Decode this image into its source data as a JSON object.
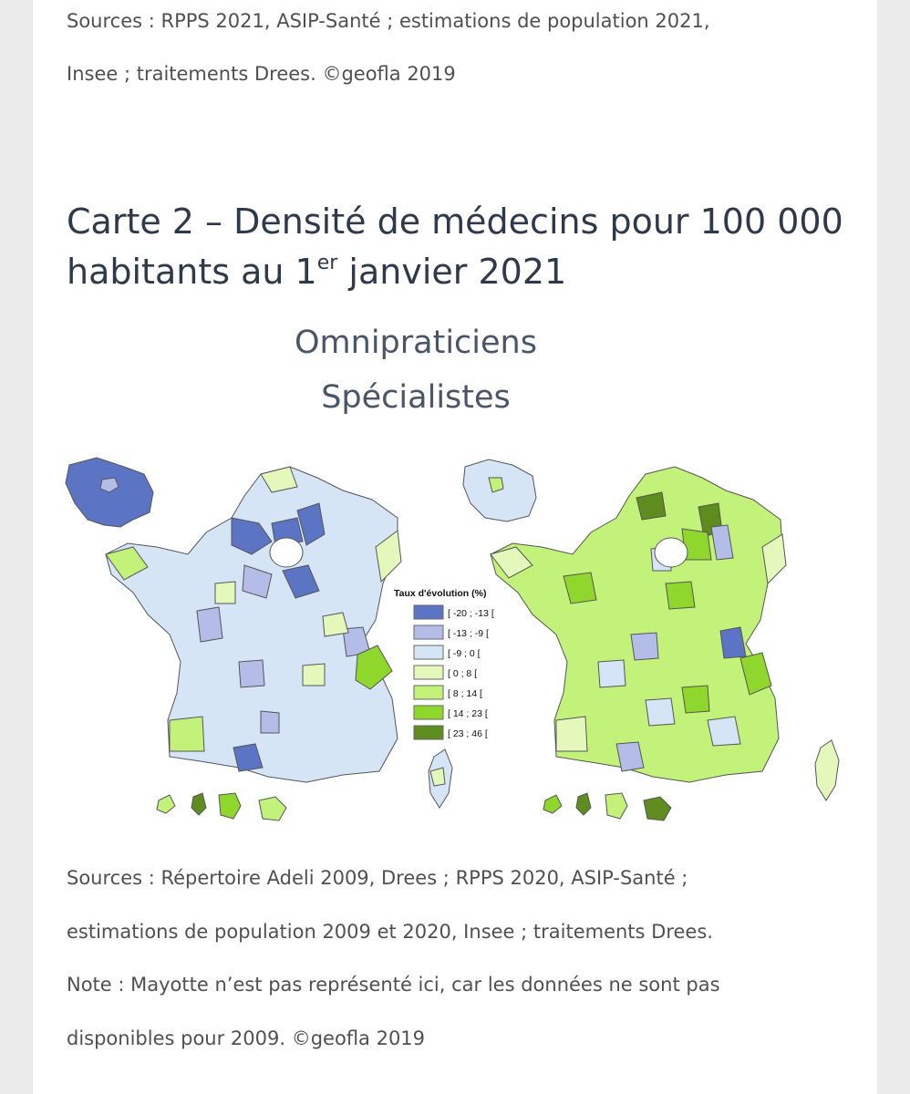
{
  "top_sources": {
    "line1": "Sources : RPPS 2021, ASIP-Santé ; estimations de population 2021,",
    "line2": "Insee ; traitements Drees. ©geofla 2019"
  },
  "heading": {
    "part1": "Carte 2 – Densité de médecins pour 100 000 habitants au 1",
    "sup": "er",
    "part2": " janvier 2021"
  },
  "subtitles": {
    "left_map": "Omnipraticiens",
    "right_map": "Spécialistes"
  },
  "legend": {
    "title": "Taux d'évolution (%)",
    "classes": [
      {
        "label": "[ -20 ; -13 [",
        "color": "#5b74c4"
      },
      {
        "label": "[ -13 ; -9 [",
        "color": "#b4bde8"
      },
      {
        "label": "[ -9 ; 0 [",
        "color": "#d6e5f6"
      },
      {
        "label": "[ 0 ; 8 [",
        "color": "#e4f8bc"
      },
      {
        "label": "[ 8 ; 14 [",
        "color": "#c3f27a"
      },
      {
        "label": "[ 14 ; 23 [",
        "color": "#8fd62d"
      },
      {
        "label": "[ 23 ; 46 [",
        "color": "#5f8c1f"
      }
    ]
  },
  "bottom_sources": {
    "line1": "Sources : Répertoire Adeli 2009, Drees ; RPPS 2020, ASIP-Santé ;",
    "line2": "estimations de population 2009 et 2020, Insee ; traitements Drees.",
    "line3": "Note : Mayotte n’est pas représenté ici, car les données ne sont pas",
    "line4": "disponibles pour 2009. ©geofla 2019"
  }
}
